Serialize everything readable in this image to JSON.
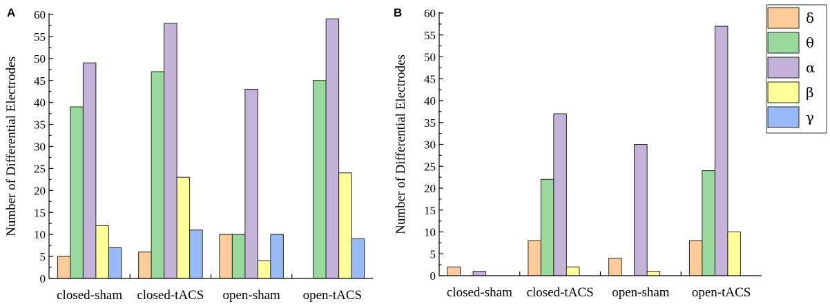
{
  "chart_data": [
    {
      "panel": "A",
      "type": "bar",
      "categories": [
        "closed-sham",
        "closed-tACS",
        "open-sham",
        "open-tACS"
      ],
      "ylabel": "Number of Differential Electrodes",
      "xlabel": "",
      "ylim": [
        0,
        60
      ],
      "yticks": [
        0,
        5,
        10,
        15,
        20,
        25,
        30,
        35,
        40,
        45,
        50,
        55,
        60
      ],
      "series": [
        {
          "name": "δ",
          "values": [
            5,
            6,
            10,
            0
          ]
        },
        {
          "name": "θ",
          "values": [
            39,
            47,
            10,
            45
          ]
        },
        {
          "name": "α",
          "values": [
            49,
            58,
            43,
            59
          ]
        },
        {
          "name": "β",
          "values": [
            12,
            23,
            4,
            24
          ]
        },
        {
          "name": "γ",
          "values": [
            7,
            11,
            10,
            9
          ]
        }
      ]
    },
    {
      "panel": "B",
      "type": "bar",
      "categories": [
        "closed-sham",
        "closed-tACS",
        "open-sham",
        "open-tACS"
      ],
      "ylabel": "Number of Differential Electrodes",
      "xlabel": "",
      "ylim": [
        0,
        60
      ],
      "yticks": [
        0,
        5,
        10,
        15,
        20,
        25,
        30,
        35,
        40,
        45,
        50,
        55,
        60
      ],
      "series": [
        {
          "name": "δ",
          "values": [
            2,
            8,
            4,
            8
          ]
        },
        {
          "name": "θ",
          "values": [
            0,
            22,
            0,
            24
          ]
        },
        {
          "name": "α",
          "values": [
            1,
            37,
            30,
            57
          ]
        },
        {
          "name": "β",
          "values": [
            0,
            2,
            1,
            10
          ]
        },
        {
          "name": "γ",
          "values": [
            0,
            0,
            0,
            0
          ]
        }
      ]
    }
  ],
  "legend": {
    "placement": "top-right",
    "items": [
      {
        "label": "δ",
        "color": "#FFCC99"
      },
      {
        "label": "θ",
        "color": "#99D99E"
      },
      {
        "label": "α",
        "color": "#C3B3D9"
      },
      {
        "label": "β",
        "color": "#FFFF99"
      },
      {
        "label": "γ",
        "color": "#99BBF5"
      }
    ]
  },
  "colors": {
    "delta": "#FFCC99",
    "theta": "#99D99E",
    "alpha": "#C3B3D9",
    "beta": "#FFFF99",
    "gamma": "#99BBF5"
  }
}
